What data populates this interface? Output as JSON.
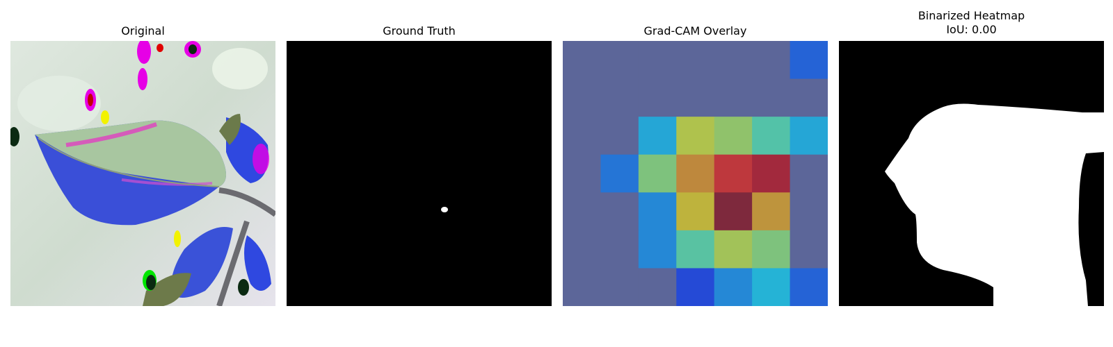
{
  "chart_data": [
    {
      "type": "image",
      "title": "Original",
      "content": "leaf photograph with color artifacts"
    },
    {
      "type": "image",
      "title": "Ground Truth",
      "content": "binary mask: black background with one small white blob"
    },
    {
      "type": "heatmap",
      "title": "Grad-CAM Overlay",
      "grid_rows": 7,
      "grid_cols": 7,
      "values": [
        [
          0.15,
          0.15,
          0.15,
          0.15,
          0.15,
          0.15,
          0.22
        ],
        [
          0.15,
          0.15,
          0.15,
          0.15,
          0.15,
          0.15,
          0.15
        ],
        [
          0.15,
          0.15,
          0.33,
          0.6,
          0.55,
          0.45,
          0.33
        ],
        [
          0.15,
          0.25,
          0.52,
          0.72,
          0.85,
          0.92,
          0.15
        ],
        [
          0.15,
          0.15,
          0.28,
          0.65,
          0.98,
          0.7,
          0.15
        ],
        [
          0.15,
          0.15,
          0.28,
          0.46,
          0.58,
          0.52,
          0.15
        ],
        [
          0.15,
          0.15,
          0.15,
          0.18,
          0.28,
          0.35,
          0.22
        ]
      ],
      "colormap": "jet",
      "overlay_alpha": 0.6
    },
    {
      "type": "image",
      "title": "Binarized Heatmap",
      "subtitle": "IoU: 0.00",
      "content": "binary mask: large white region on black background"
    }
  ],
  "colors": {
    "background": "#ffffff",
    "mask_fg": "#ffffff",
    "mask_bg": "#000000",
    "overlay_base": "#5c6699"
  }
}
